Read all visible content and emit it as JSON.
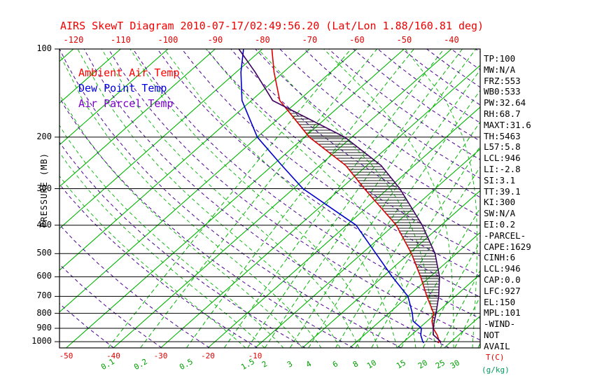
{
  "title": "AIRS SkewT Diagram 2010-07-17/02:49:56.20 (Lat/Lon 1.88/160.81 deg)",
  "legend": [
    {
      "label": "Ambient Air Temp",
      "color": "#ff0000"
    },
    {
      "label": "Dew Point Temp",
      "color": "#0000e0"
    },
    {
      "label": "Air Parcel Temp",
      "color": "#7d00cc"
    }
  ],
  "axes": {
    "pressure_label": "PRESSURE (MB)",
    "pressure_ticks": [
      100,
      200,
      300,
      400,
      500,
      600,
      700,
      800,
      900,
      1000
    ],
    "top_temp_ticks": [
      -120,
      -110,
      -100,
      -90,
      -80,
      -70,
      -60,
      -50,
      -40
    ],
    "bottom_temp_ticks": [
      -50,
      -40,
      -30,
      -20,
      -10
    ],
    "mixing_ratio_ticks": [
      0.1,
      0.2,
      0.5,
      1.5,
      2,
      3,
      4,
      6,
      8,
      10,
      15,
      20,
      25,
      30
    ],
    "temp_unit": "T(C)",
    "mixing_unit": "(g/kg)"
  },
  "stats": [
    "TP:100",
    "MW:N/A",
    "FRZ:553",
    "WB0:533",
    "PW:32.64",
    "RH:68.7",
    "MAXT:31.6",
    "TH:5463",
    "L57:5.8",
    "LCL:946",
    "LI:-2.8",
    "SI:3.1",
    "TT:39.1",
    "KI:300",
    "SW:N/A",
    "EI:0.2",
    "-PARCEL-",
    "CAPE:1629",
    "CINH:6",
    "LCL:946",
    "CAP:0.0",
    "LFC:927",
    "EL:150",
    "MPL:101",
    "-WIND-",
    "NOT",
    "AVAIL"
  ],
  "chart_data": {
    "type": "line",
    "title": "AIRS SkewT Diagram 2010-07-17/02:49:56.20 (Lat/Lon 1.88/160.81 deg)",
    "xlabel": "Temperature (C)",
    "ylabel": "Pressure (MB)",
    "x_axis": {
      "range_at_surface_c": [
        -51,
        38
      ],
      "skew_deg": 45
    },
    "y_axis": {
      "range_mb": [
        100,
        1050
      ],
      "scale": "log"
    },
    "isotherms_c": {
      "min": -140,
      "max": 40,
      "step": 10
    },
    "dry_adiabats_k": {
      "min": 230,
      "max": 500,
      "step": 10
    },
    "moist_adiabats_c": {
      "min": -12,
      "max": 36,
      "step": 4
    },
    "mixing_ratio_lines_gkg": [
      0.1,
      0.2,
      0.5,
      1,
      1.5,
      2,
      3,
      4,
      6,
      8,
      10,
      15,
      20,
      25,
      30,
      40
    ],
    "colors": {
      "isotherm": "#00b400",
      "mixing": "#00b400",
      "moist": "#00b400",
      "adiabat": "#4a0096",
      "hatch": "#1c1c1c"
    },
    "series": [
      {
        "name": "Ambient Air Temp",
        "color": "#dc0000",
        "points": [
          [
            1010,
            27.5
          ],
          [
            1000,
            27.5
          ],
          [
            950,
            25.5
          ],
          [
            900,
            23
          ],
          [
            850,
            21
          ],
          [
            800,
            19.5
          ],
          [
            700,
            14
          ],
          [
            600,
            8
          ],
          [
            500,
            0.5
          ],
          [
            400,
            -9.5
          ],
          [
            300,
            -25
          ],
          [
            250,
            -34.5
          ],
          [
            200,
            -49
          ],
          [
            150,
            -64
          ],
          [
            120,
            -72
          ],
          [
            100,
            -78
          ]
        ]
      },
      {
        "name": "Dew Point Temp",
        "color": "#0000cd",
        "points": [
          [
            1010,
            24.5
          ],
          [
            1000,
            24
          ],
          [
            950,
            22
          ],
          [
            900,
            20.5
          ],
          [
            850,
            17
          ],
          [
            800,
            15
          ],
          [
            700,
            10
          ],
          [
            600,
            2
          ],
          [
            500,
            -7
          ],
          [
            400,
            -18
          ],
          [
            300,
            -38
          ],
          [
            250,
            -48
          ],
          [
            200,
            -60
          ],
          [
            150,
            -72
          ],
          [
            120,
            -79
          ],
          [
            100,
            -84
          ]
        ]
      },
      {
        "name": "Air Parcel Temp",
        "color": "#3f0060",
        "points": [
          [
            1010,
            28
          ],
          [
            1000,
            27.8
          ],
          [
            946,
            24.5
          ],
          [
            900,
            23
          ],
          [
            850,
            21.5
          ],
          [
            800,
            20
          ],
          [
            700,
            16.5
          ],
          [
            600,
            12
          ],
          [
            500,
            5.5
          ],
          [
            400,
            -4
          ],
          [
            300,
            -17.5
          ],
          [
            250,
            -27
          ],
          [
            200,
            -41.5
          ],
          [
            150,
            -65.5
          ],
          [
            120,
            -76
          ],
          [
            100,
            -85
          ]
        ]
      }
    ],
    "cape_hatch_between": [
      "Air Parcel Temp",
      "Ambient Air Temp"
    ],
    "hatch_pressure_range": [
      155,
      935
    ]
  }
}
